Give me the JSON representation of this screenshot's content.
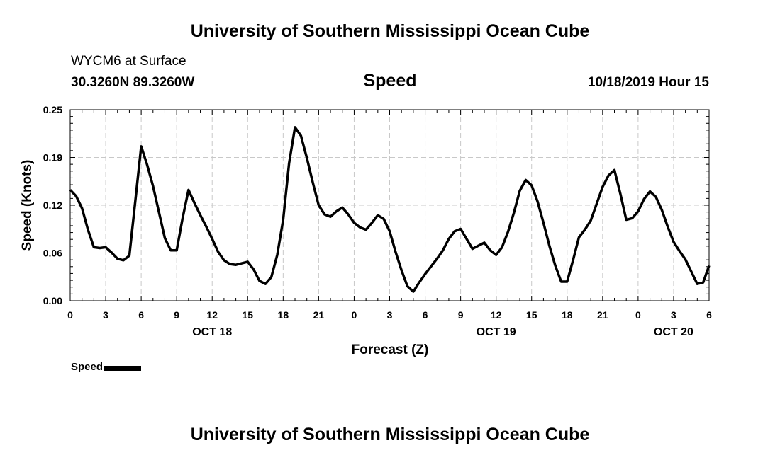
{
  "header": {
    "title": "University of Southern Mississippi Ocean Cube",
    "station": "WYCM6 at Surface",
    "coordinates": "30.3260N 89.3260W",
    "variable": "Speed",
    "datetime": "10/18/2019 Hour 15"
  },
  "footer": {
    "title": "University of Southern Mississippi Ocean Cube"
  },
  "legend": {
    "label": "Speed",
    "color": "#000000"
  },
  "chart_data": {
    "type": "line",
    "title": "Speed",
    "xlabel": "Forecast (Z)",
    "ylabel": "Speed (Knots)",
    "xlim": [
      0,
      54
    ],
    "ylim": [
      0,
      0.25
    ],
    "grid": true,
    "y_ticks": [
      "0.00",
      "0.06",
      "0.12",
      "0.19",
      "0.25"
    ],
    "y_tick_values": [
      0,
      0.0625,
      0.125,
      0.1875,
      0.25
    ],
    "x_ticks": [
      "0",
      "3",
      "6",
      "9",
      "12",
      "15",
      "18",
      "21",
      "0",
      "3",
      "6",
      "9",
      "12",
      "15",
      "18",
      "21",
      "0",
      "3",
      "6"
    ],
    "x_tick_values": [
      0,
      3,
      6,
      9,
      12,
      15,
      18,
      21,
      24,
      27,
      30,
      33,
      36,
      39,
      42,
      45,
      48,
      51,
      54
    ],
    "date_labels": [
      {
        "label": "OCT 18",
        "hour": 12
      },
      {
        "label": "OCT 19",
        "hour": 36
      },
      {
        "label": "OCT 20",
        "hour": 51
      }
    ],
    "series": [
      {
        "name": "Speed",
        "color": "#000000",
        "x": [
          0,
          0.5,
          1,
          1.5,
          2,
          2.5,
          3,
          3.5,
          4,
          4.5,
          5,
          5.5,
          6,
          6.5,
          7,
          7.5,
          8,
          8.5,
          9,
          9.5,
          10,
          10.5,
          11,
          11.5,
          12,
          12.5,
          13,
          13.5,
          14,
          14.5,
          15,
          15.5,
          16,
          16.5,
          17,
          17.5,
          18,
          18.5,
          19,
          19.5,
          20,
          20.5,
          21,
          21.5,
          22,
          22.5,
          23,
          23.5,
          24,
          24.5,
          25,
          25.5,
          26,
          26.5,
          27,
          27.5,
          28,
          28.5,
          29,
          29.5,
          30,
          30.5,
          31,
          31.5,
          32,
          32.5,
          33,
          33.5,
          34,
          34.5,
          35,
          35.5,
          36,
          36.5,
          37,
          37.5,
          38,
          38.5,
          39,
          39.5,
          40,
          40.5,
          41,
          41.5,
          42,
          42.5,
          43,
          43.5,
          44,
          44.5,
          45,
          45.5,
          46,
          46.5,
          47,
          47.5,
          48,
          48.5,
          49,
          49.5,
          50,
          50.5,
          51,
          51.5,
          52,
          52.5,
          53,
          53.5,
          54
        ],
        "values": [
          0.145,
          0.137,
          0.121,
          0.093,
          0.07,
          0.069,
          0.07,
          0.063,
          0.055,
          0.053,
          0.059,
          0.13,
          0.202,
          0.178,
          0.15,
          0.116,
          0.082,
          0.066,
          0.066,
          0.108,
          0.145,
          0.128,
          0.112,
          0.097,
          0.081,
          0.064,
          0.053,
          0.048,
          0.047,
          0.049,
          0.051,
          0.041,
          0.026,
          0.022,
          0.031,
          0.06,
          0.106,
          0.18,
          0.227,
          0.216,
          0.187,
          0.155,
          0.125,
          0.113,
          0.11,
          0.117,
          0.122,
          0.113,
          0.102,
          0.096,
          0.093,
          0.102,
          0.112,
          0.107,
          0.091,
          0.064,
          0.04,
          0.019,
          0.012,
          0.024,
          0.035,
          0.045,
          0.055,
          0.066,
          0.081,
          0.091,
          0.094,
          0.081,
          0.068,
          0.072,
          0.076,
          0.066,
          0.06,
          0.07,
          0.09,
          0.115,
          0.144,
          0.158,
          0.151,
          0.13,
          0.102,
          0.072,
          0.046,
          0.025,
          0.025,
          0.053,
          0.083,
          0.093,
          0.105,
          0.127,
          0.149,
          0.164,
          0.171,
          0.14,
          0.106,
          0.108,
          0.117,
          0.133,
          0.143,
          0.136,
          0.119,
          0.097,
          0.077,
          0.065,
          0.054,
          0.038,
          0.022,
          0.024,
          0.046
        ]
      }
    ]
  }
}
